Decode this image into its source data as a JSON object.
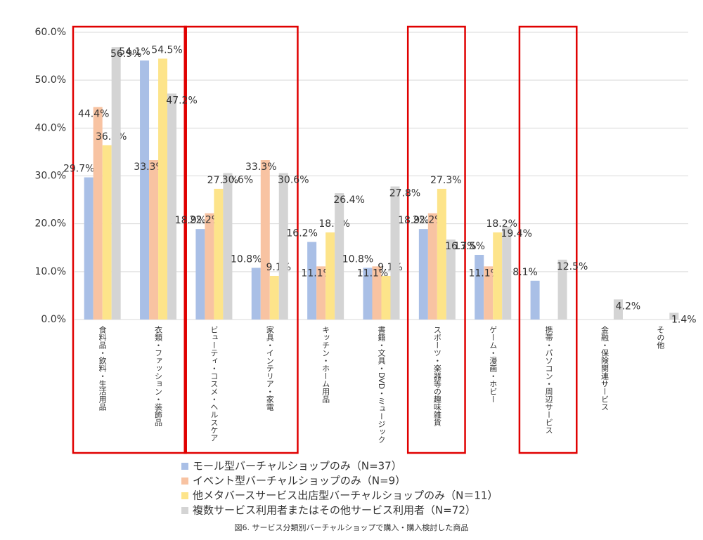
{
  "chart_data": {
    "type": "bar",
    "title": "図6. サービス分類別バーチャルショップで購入・購入検討した商品",
    "categories": [
      "食料品・飲料・生活用品",
      "衣類・ファッション・装飾品",
      "ビューティ・コスメ・ヘルスケア",
      "家具・インテリア・家電",
      "キッチン・ホーム用品",
      "書籍・文具・DVD・ミュージック",
      "スポーツ・楽器等の趣味雑貨",
      "ゲーム・漫画・ホビー",
      "携帯・パソコン・周辺サービス",
      "金融・保険関連サービス",
      "その他"
    ],
    "series": [
      {
        "name": "モール型バーチャルショップのみ（N=37）",
        "color": "#a9bfe6",
        "values": [
          29.7,
          54.1,
          18.9,
          10.8,
          16.2,
          10.8,
          18.9,
          13.5,
          8.1,
          0,
          0
        ],
        "value_labels": [
          "29.7%",
          "54.1%",
          "18.9%",
          "10.8%",
          "16.2%",
          "10.8%",
          "18.9%",
          "13.5%",
          "8.1%",
          null,
          null
        ]
      },
      {
        "name": "イベント型バーチャルショップのみ（N=9）",
        "color": "#f8c3a2",
        "values": [
          44.4,
          33.3,
          22.2,
          33.3,
          11.1,
          11.1,
          22.2,
          11.1,
          0,
          0,
          0
        ],
        "value_labels": [
          "44.4%",
          "33.3%",
          "22.2%",
          "33.3%",
          "11.1%",
          "11.1%",
          "22.2%",
          "11.1%",
          null,
          null,
          null
        ]
      },
      {
        "name": "他メタバースサービス出店型バーチャルショップのみ（N＝11）",
        "color": "#fde48a",
        "values": [
          36.4,
          54.5,
          27.3,
          9.1,
          18.2,
          9.1,
          27.3,
          18.2,
          0,
          0,
          0
        ],
        "value_labels": [
          "36.4%",
          "54.5%",
          "27.3%",
          "9.1%",
          "18.2%",
          "9.1%",
          "27.3%",
          "18.2%",
          null,
          null,
          null
        ]
      },
      {
        "name": "複数サービス利用者またはその他サービス利用者（N=72）",
        "color": "#d4d4d4",
        "values": [
          56.9,
          47.2,
          30.6,
          30.6,
          26.4,
          27.8,
          16.7,
          19.4,
          12.5,
          4.2,
          1.4
        ],
        "value_labels": [
          "56.9%",
          "47.2%",
          "30.6%",
          "30.6%",
          "26.4%",
          "27.8%",
          "16.7%",
          "19.4%",
          "12.5%",
          "4.2%",
          "1.4%"
        ]
      }
    ],
    "ylim": [
      0,
      60
    ],
    "yticks": [
      {
        "value": 0,
        "label": "0.0%"
      },
      {
        "value": 10,
        "label": "10.0%"
      },
      {
        "value": 20,
        "label": "20.0%"
      },
      {
        "value": 30,
        "label": "30.0%"
      },
      {
        "value": 40,
        "label": "40.0%"
      },
      {
        "value": 50,
        "label": "50.0%"
      },
      {
        "value": 60,
        "label": "60.0%"
      }
    ],
    "grid": true
  }
}
